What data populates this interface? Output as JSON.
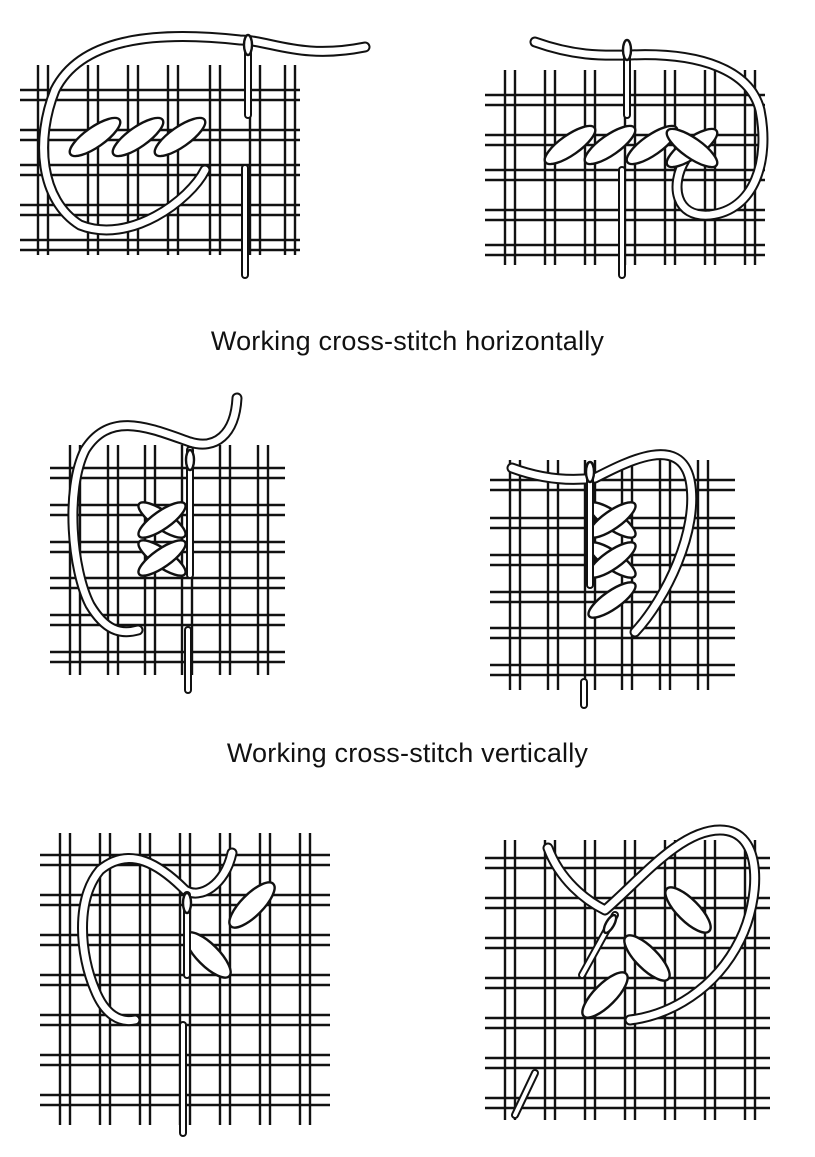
{
  "captions": {
    "horizontal": "Working cross-stitch horizontally",
    "vertical": "Working cross-stitch vertically"
  },
  "colors": {
    "ink": "#111111",
    "paper": "#ffffff"
  }
}
